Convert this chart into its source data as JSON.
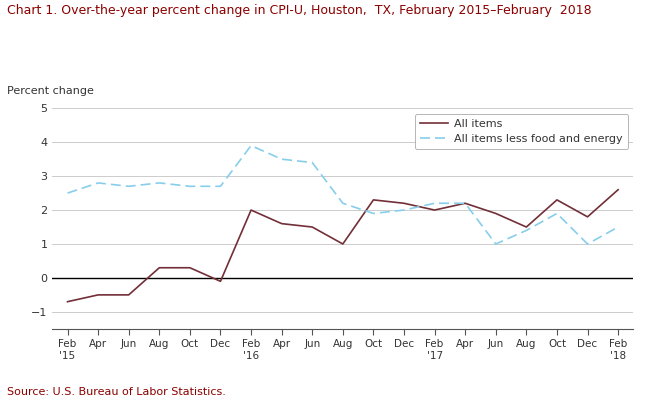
{
  "title": "Chart 1. Over-the-year percent change in CPI-U, Houston,  TX, February 2015–February  2018",
  "ylabel": "Percent change",
  "source": "Source: U.S. Bureau of Labor Statistics.",
  "ylim": [
    -1.5,
    5.0
  ],
  "yticks": [
    -1.0,
    0.0,
    1.0,
    2.0,
    3.0,
    4.0,
    5.0
  ],
  "text_color": "#333333",
  "title_color": "#8B0000",
  "source_color": "#8B0000",
  "tick_labels": [
    "Feb\n'15",
    "Apr",
    "Jun",
    "Aug",
    "Oct",
    "Dec",
    "Feb\n'16",
    "Apr",
    "Jun",
    "Aug",
    "Oct",
    "Dec",
    "Feb\n'17",
    "Apr",
    "Jun",
    "Aug",
    "Oct",
    "Dec",
    "Feb\n'18"
  ],
  "all_items": [
    -0.7,
    -0.5,
    -0.5,
    0.3,
    0.3,
    -0.1,
    2.0,
    1.6,
    1.5,
    1.0,
    2.3,
    2.2,
    2.0,
    2.2,
    1.9,
    1.5,
    2.3,
    1.8,
    2.6
  ],
  "all_items_less": [
    2.5,
    2.8,
    2.7,
    2.8,
    2.7,
    2.7,
    3.9,
    3.5,
    3.4,
    2.2,
    1.9,
    2.0,
    2.2,
    2.2,
    1.0,
    1.4,
    1.9,
    1.0,
    1.5
  ],
  "all_items_color": "#722F37",
  "all_items_less_color": "#87CEEB",
  "legend_all_items": "All items",
  "legend_all_items_less": "All items less food and energy"
}
